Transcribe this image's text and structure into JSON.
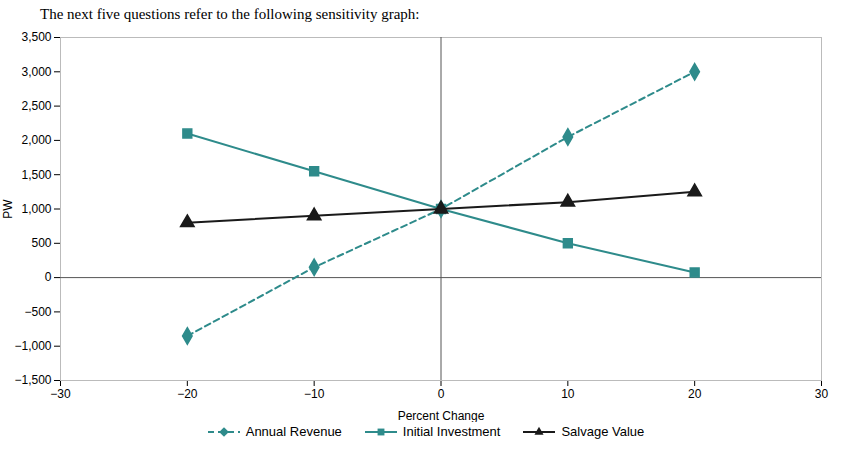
{
  "chart_data": {
    "type": "line",
    "title": "The next five questions refer to the following sensitivity graph:",
    "xlabel": "Percent Change",
    "ylabel": "PW",
    "x": [
      -20,
      -10,
      0,
      10,
      20
    ],
    "series": [
      {
        "name": "Annual Revenue",
        "color": "#2e8b8b",
        "line_style": "dashed",
        "marker": "diamond",
        "values": [
          -850,
          150,
          1000,
          2050,
          3000
        ]
      },
      {
        "name": "Initial Investment",
        "color": "#2e8b8b",
        "line_style": "solid",
        "marker": "square",
        "values": [
          2100,
          1550,
          1000,
          500,
          75
        ]
      },
      {
        "name": "Salvage Value",
        "color": "#1a1a1a",
        "line_style": "solid",
        "marker": "triangle",
        "values": [
          800,
          900,
          1000,
          1100,
          1250
        ]
      }
    ],
    "xlim": [
      -30,
      30
    ],
    "ylim": [
      -1500,
      3500
    ],
    "xticks": [
      -30,
      -20,
      -10,
      0,
      10,
      20,
      30
    ],
    "yticks": [
      -1500,
      -1000,
      -500,
      0,
      500,
      1000,
      1500,
      2000,
      2500,
      3000,
      3500
    ],
    "grid": false,
    "legend": "bottom"
  }
}
